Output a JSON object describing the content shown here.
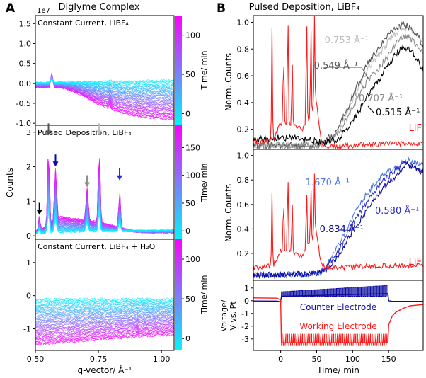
{
  "figure": {
    "panel_a": {
      "letter": "A",
      "title": "Diglyme Complex"
    },
    "panel_b": {
      "letter": "B",
      "title": "Pulsed Deposition, LiBF₄"
    }
  },
  "colors": {
    "colorbar_low": "#00f5ff",
    "colorbar_high": "#ff00ff",
    "red": "#ff1a1a",
    "dark_blue": "#0a0aa0",
    "mid_blue": "#2a2ad2",
    "light_blue": "#4c78e0",
    "black": "#000000",
    "dark_gray": "#555555",
    "mid_gray": "#8c8c8c",
    "light_gray": "#bdbdbd"
  },
  "chart_data": [
    {
      "type": "line",
      "id": "A1",
      "label": "Constant Current, LiBF₄",
      "scale_label": "1e7",
      "xlim": [
        0.5,
        1.05
      ],
      "ylim": [
        -1.05,
        1.7
      ],
      "yticks": [
        "-1.0",
        "-0.5",
        "0.0",
        "0.5",
        "1.0",
        "1.5"
      ],
      "colorbar": {
        "label": "Time/ min",
        "range": [
          -15,
          125
        ],
        "ticks": [
          "0",
          "50",
          "100"
        ]
      },
      "first_curve": {
        "x": [
          0.5,
          0.55,
          0.6,
          0.7,
          0.8,
          0.9,
          1.0,
          1.05
        ],
        "y": [
          0.02,
          0.02,
          0.03,
          0.04,
          0.05,
          0.06,
          0.07,
          0.07
        ]
      },
      "last_curve": {
        "x": [
          0.5,
          0.55,
          0.6,
          0.65,
          0.7,
          0.75,
          0.8,
          0.85,
          0.9,
          0.95,
          1.0,
          1.05
        ],
        "y": [
          -0.1,
          -0.1,
          -0.1,
          -0.2,
          -0.35,
          -0.52,
          -0.66,
          -0.76,
          -0.82,
          -0.86,
          -0.89,
          -0.9
        ]
      },
      "peaks": [
        {
          "x": 0.565,
          "height": 0.35,
          "width": 0.006
        },
        {
          "x": 0.795,
          "height": 0.12,
          "width": 0.005
        }
      ],
      "curve_count": 40
    },
    {
      "type": "line",
      "id": "A2",
      "label": "Pulsed Deposition, LiBF₄",
      "ylabel": "Counts",
      "xlim": [
        0.5,
        1.05
      ],
      "ylim": [
        -0.1,
        3.2
      ],
      "yticks": [
        "0",
        "1",
        "2",
        "3"
      ],
      "colorbar": {
        "label": "Time/ min",
        "range": [
          -15,
          190
        ],
        "ticks": [
          "0",
          "50",
          "100",
          "150"
        ]
      },
      "first_curve": {
        "x": [
          0.5,
          0.6,
          0.7,
          0.8,
          0.9,
          1.0,
          1.05
        ],
        "y": [
          0.08,
          0.1,
          0.12,
          0.13,
          0.14,
          0.15,
          0.15
        ]
      },
      "last_curve": {
        "x": [
          0.5,
          0.55,
          0.6,
          0.65,
          0.7,
          0.75,
          0.8,
          0.85,
          0.9,
          0.95,
          1.0,
          1.05
        ],
        "y": [
          0.12,
          0.28,
          0.55,
          0.5,
          0.45,
          0.4,
          0.3,
          0.2,
          0.12,
          0.1,
          0.1,
          0.1
        ]
      },
      "peaks": [
        {
          "x": 0.516,
          "height": 0.4,
          "width": 0.004
        },
        {
          "x": 0.552,
          "height": 2.3,
          "width": 0.005
        },
        {
          "x": 0.58,
          "height": 1.5,
          "width": 0.006
        },
        {
          "x": 0.705,
          "height": 0.95,
          "width": 0.006
        },
        {
          "x": 0.753,
          "height": 2.15,
          "width": 0.005
        },
        {
          "x": 0.834,
          "height": 1.05,
          "width": 0.005
        }
      ],
      "curve_count": 40,
      "arrows": [
        {
          "x": 0.516,
          "y": 0.75,
          "color": "black"
        },
        {
          "x": 0.552,
          "y": 3.05,
          "color": "dark_gray"
        },
        {
          "x": 0.58,
          "y": 2.15,
          "color": "dark_blue"
        },
        {
          "x": 0.705,
          "y": 1.55,
          "color": "mid_gray"
        },
        {
          "x": 0.753,
          "y": 3.05,
          "color": "light_gray"
        },
        {
          "x": 0.834,
          "y": 1.75,
          "color": "mid_blue"
        }
      ]
    },
    {
      "type": "line",
      "id": "A3",
      "label": "Constant Current, LiBF₄ + H₂O",
      "xlabel": "q-vector/ Å⁻¹",
      "xlim": [
        0.5,
        1.05
      ],
      "ylim": [
        -1.65,
        1.7
      ],
      "yticks": [
        "-1",
        "0",
        "1"
      ],
      "xticks": [
        "0.50",
        "0.75",
        "1.00"
      ],
      "colorbar": {
        "label": "Time/ min",
        "range": [
          -15,
          125
        ],
        "ticks": [
          "0",
          "50",
          "100"
        ]
      },
      "first_curve": {
        "x": [
          0.5,
          0.6,
          0.7,
          0.8,
          0.9,
          1.0,
          1.05
        ],
        "y": [
          -0.1,
          -0.1,
          -0.1,
          -0.1,
          -0.1,
          -0.1,
          -0.1
        ]
      },
      "last_curve": {
        "x": [
          0.5,
          0.6,
          0.7,
          0.8,
          0.9,
          1.0,
          1.05
        ],
        "y": [
          -1.48,
          -1.42,
          -1.36,
          -1.3,
          -1.24,
          -1.2,
          -1.18
        ]
      },
      "peaks": [
        {
          "x": 0.905,
          "height": 0.08,
          "width": 0.004
        }
      ],
      "curve_count": 40
    },
    {
      "type": "line",
      "id": "B1",
      "ylabel": "Norm. Counts",
      "xlim": [
        -38,
        198
      ],
      "ylim": [
        0.05,
        1.05
      ],
      "yticks": [
        "0.2",
        "0.4",
        "0.6",
        "0.8",
        "1.0"
      ],
      "series": [
        {
          "name": "0.753 Å⁻¹",
          "color": "light_gray",
          "x": [
            -38,
            40,
            60,
            80,
            100,
            120,
            140,
            150,
            160,
            170,
            180,
            190,
            198
          ],
          "y": [
            0.08,
            0.08,
            0.09,
            0.18,
            0.42,
            0.64,
            0.78,
            0.86,
            0.92,
            0.96,
            0.94,
            0.9,
            0.86
          ]
        },
        {
          "name": "0.549 Å⁻¹",
          "color": "dark_gray",
          "x": [
            -38,
            40,
            60,
            80,
            100,
            120,
            140,
            150,
            160,
            170,
            180,
            190,
            198
          ],
          "y": [
            0.08,
            0.08,
            0.1,
            0.2,
            0.45,
            0.68,
            0.84,
            0.91,
            0.96,
            0.98,
            0.96,
            0.9,
            0.82
          ]
        },
        {
          "name": "0.707 Å⁻¹",
          "color": "mid_gray",
          "x": [
            -38,
            40,
            60,
            80,
            100,
            120,
            140,
            150,
            160,
            170,
            180,
            190,
            198
          ],
          "y": [
            0.08,
            0.08,
            0.09,
            0.16,
            0.36,
            0.56,
            0.68,
            0.76,
            0.84,
            0.9,
            0.88,
            0.82,
            0.78
          ]
        },
        {
          "name": "0.515 Å⁻¹",
          "color": "black",
          "x": [
            -38,
            0,
            20,
            40,
            55,
            60,
            80,
            100,
            120,
            140,
            150,
            160,
            170,
            180,
            190,
            198
          ],
          "y": [
            0.12,
            0.14,
            0.13,
            0.12,
            0.1,
            0.1,
            0.12,
            0.26,
            0.44,
            0.6,
            0.68,
            0.76,
            0.82,
            0.8,
            0.72,
            0.64
          ]
        },
        {
          "name": "LiF",
          "color": "red",
          "x": [
            -38,
            -10,
            0,
            30,
            50,
            55,
            60,
            80,
            100,
            150,
            198
          ],
          "y": [
            0.1,
            0.12,
            0.25,
            0.2,
            0.4,
            0.15,
            0.07,
            0.07,
            0.08,
            0.09,
            0.1
          ]
        }
      ],
      "spikes": [
        {
          "x": -12,
          "height": 0.83
        },
        {
          "x": 10,
          "height": 0.87
        },
        {
          "x": 4,
          "height": 0.58
        },
        {
          "x": 16,
          "height": 0.5
        },
        {
          "x": 36,
          "height": 0.82
        },
        {
          "x": 42,
          "height": 0.65
        },
        {
          "x": 47,
          "height": 0.7
        }
      ]
    },
    {
      "type": "line",
      "id": "B2",
      "ylabel": "Norm. Counts",
      "xlim": [
        -38,
        198
      ],
      "ylim": [
        -0.02,
        1.05
      ],
      "yticks": [
        "0.2",
        "0.4",
        "0.6",
        "0.8",
        "1.0"
      ],
      "series": [
        {
          "name": "1.670 Å⁻¹",
          "color": "light_blue",
          "x": [
            -38,
            40,
            55,
            60,
            80,
            100,
            120,
            140,
            160,
            175,
            185,
            198
          ],
          "y": [
            0.02,
            0.03,
            0.05,
            0.06,
            0.26,
            0.5,
            0.69,
            0.83,
            0.9,
            0.96,
            0.94,
            0.92
          ]
        },
        {
          "name": "0.580 Å⁻¹",
          "color": "mid_blue",
          "x": [
            -38,
            40,
            55,
            60,
            80,
            100,
            120,
            140,
            160,
            175,
            185,
            198
          ],
          "y": [
            0.02,
            0.03,
            0.05,
            0.06,
            0.22,
            0.44,
            0.62,
            0.78,
            0.88,
            0.95,
            0.92,
            0.88
          ]
        },
        {
          "name": "0.834 Å⁻¹",
          "color": "dark_blue",
          "x": [
            -38,
            40,
            55,
            60,
            80,
            100,
            120,
            140,
            160,
            175,
            185,
            198
          ],
          "y": [
            0.02,
            0.03,
            0.04,
            0.05,
            0.18,
            0.38,
            0.56,
            0.72,
            0.84,
            0.93,
            0.9,
            0.86
          ]
        },
        {
          "name": "LiF",
          "color": "red",
          "x": [
            -38,
            -10,
            0,
            30,
            50,
            55,
            60,
            80,
            100,
            150,
            198
          ],
          "y": [
            0.08,
            0.1,
            0.22,
            0.18,
            0.38,
            0.15,
            0.09,
            0.08,
            0.09,
            0.1,
            0.1
          ]
        }
      ],
      "spikes": [
        {
          "x": -12,
          "height": 0.58
        },
        {
          "x": 10,
          "height": 0.68
        },
        {
          "x": 4,
          "height": 0.48
        },
        {
          "x": 16,
          "height": 0.42
        },
        {
          "x": 36,
          "height": 0.52
        },
        {
          "x": 42,
          "height": 0.44
        },
        {
          "x": 47,
          "height": 0.5
        }
      ]
    },
    {
      "type": "line",
      "id": "B3",
      "ylabel_line1": "Voltage/",
      "ylabel_line2": "V vs. Pt",
      "xlabel": "Time/ min",
      "xlim": [
        -38,
        198
      ],
      "ylim": [
        -3.9,
        1.6
      ],
      "yticks": [
        "-3",
        "-2",
        "-1",
        "0",
        "1"
      ],
      "xticks": [
        "0",
        "50",
        "100",
        "150"
      ],
      "series": [
        {
          "name": "Counter Electrode",
          "color": "dark_blue",
          "x": [
            -38,
            -5,
            0,
            1,
            149,
            150,
            155,
            170,
            198
          ],
          "y": [
            -0.02,
            -0.03,
            -0.1,
            0.35,
            0.55,
            0.0,
            -0.05,
            -0.05,
            -0.05
          ]
        },
        {
          "name": "Working Electrode",
          "color": "red",
          "x": [
            -38,
            -5,
            0,
            1,
            149,
            150,
            155,
            160,
            170,
            180,
            198
          ],
          "y": [
            0.22,
            0.2,
            0.05,
            -3.3,
            -3.3,
            -1.9,
            -1.2,
            -0.9,
            -0.6,
            -0.4,
            -0.3
          ]
        }
      ],
      "pulses": {
        "x_start": 1,
        "x_end": 149,
        "count": 58,
        "counter_high": [
          0.7,
          1.2
        ],
        "working_low": -3.55,
        "working_high": -2.6
      }
    }
  ]
}
